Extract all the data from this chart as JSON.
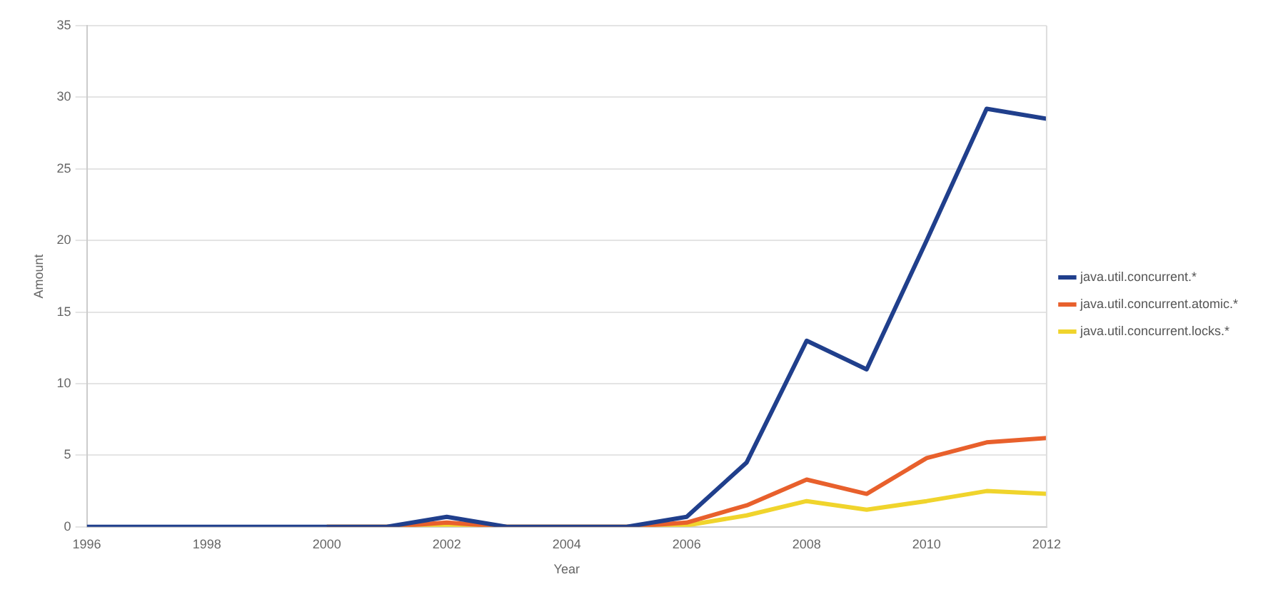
{
  "chart_data": {
    "type": "line",
    "xlabel": "Year",
    "ylabel": "Amount",
    "x": [
      1996,
      1997,
      1998,
      1999,
      2000,
      2001,
      2002,
      2003,
      2004,
      2005,
      2006,
      2007,
      2008,
      2009,
      2010,
      2011,
      2012
    ],
    "series": [
      {
        "name": "java.util.concurrent.*",
        "color": "#203f8c",
        "values": [
          0,
          0,
          0,
          0,
          0,
          0,
          0.7,
          0,
          0,
          0,
          0.7,
          4.5,
          13,
          11,
          20,
          29.2,
          28.5
        ]
      },
      {
        "name": "java.util.concurrent.atomic.*",
        "color": "#e8602c",
        "values": [
          null,
          null,
          null,
          null,
          0,
          0,
          0.3,
          0,
          0,
          0,
          0.3,
          1.5,
          3.3,
          2.3,
          4.8,
          5.9,
          6.2
        ]
      },
      {
        "name": "java.util.concurrent.locks.*",
        "color": "#f0d42c",
        "values": [
          null,
          null,
          null,
          null,
          0,
          0,
          0.1,
          0,
          0,
          0,
          0.1,
          0.8,
          1.8,
          1.2,
          1.8,
          2.5,
          2.3
        ]
      }
    ],
    "xlim": [
      1996,
      2012
    ],
    "xticks": [
      1996,
      1998,
      2000,
      2002,
      2004,
      2006,
      2008,
      2010,
      2012
    ],
    "ylim": [
      0,
      35
    ],
    "yticks": [
      0,
      5,
      10,
      15,
      20,
      25,
      30,
      35
    ],
    "grid": "y",
    "legend": "right",
    "marker": "none",
    "line_style": "solid"
  }
}
